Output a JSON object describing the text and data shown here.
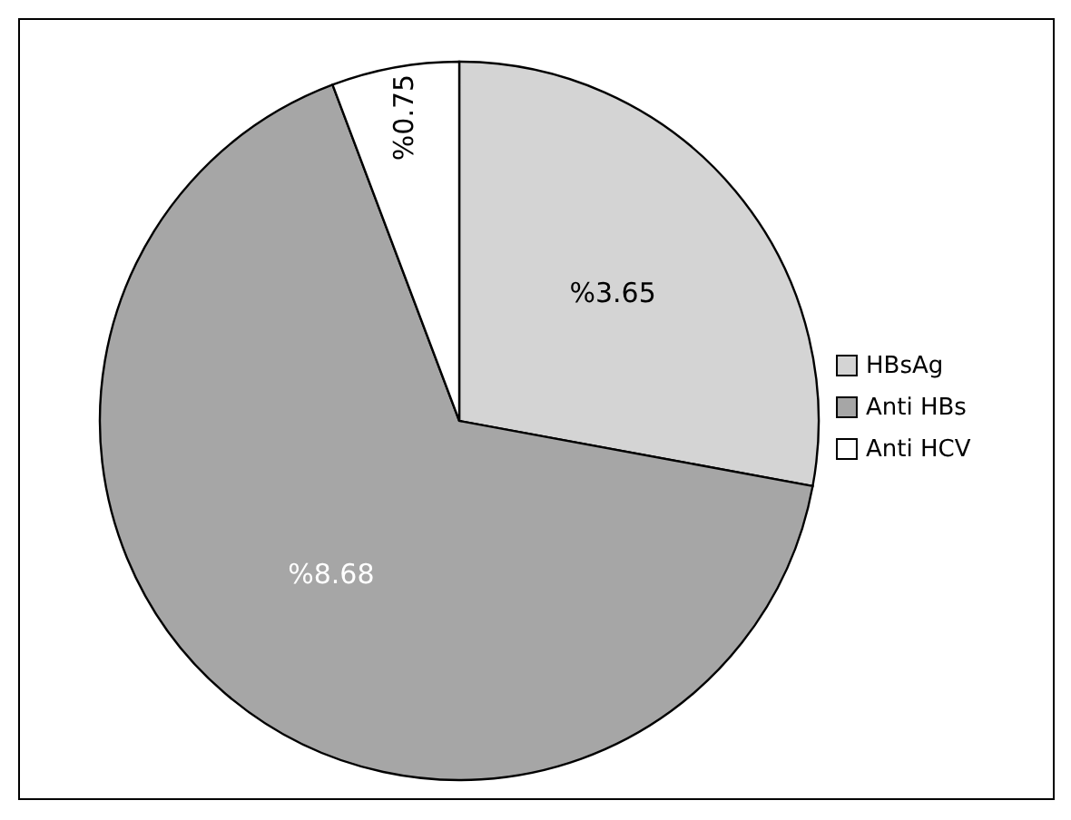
{
  "chart_data": {
    "type": "pie",
    "categories": [
      "HBsAg",
      "Anti HBs",
      "Anti HCV"
    ],
    "values": [
      3.65,
      8.68,
      0.75
    ],
    "colors": [
      "#d4d4d4",
      "#a6a6a6",
      "#ffffff"
    ],
    "value_labels": [
      "%3.65",
      "%8.68",
      "%0.75"
    ],
    "legend": "right"
  }
}
